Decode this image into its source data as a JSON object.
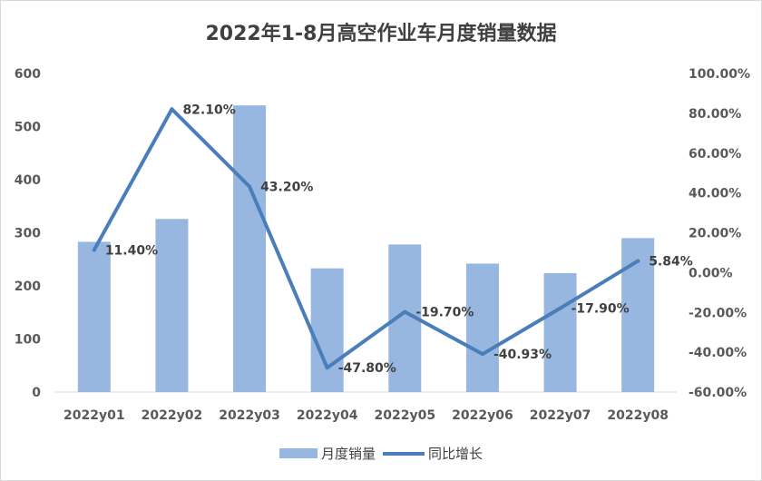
{
  "chart_data": {
    "type": "bar",
    "title": "2022年1-8月高空作业车月度销量数据",
    "categories": [
      "2022y01",
      "2022y02",
      "2022y03",
      "2022y04",
      "2022y05",
      "2022y06",
      "2022y07",
      "2022y08"
    ],
    "series": [
      {
        "name": "月度销量",
        "type": "bar",
        "axis": "left",
        "color": "#97b6e0",
        "values": [
          283,
          326,
          540,
          233,
          278,
          242,
          224,
          290
        ]
      },
      {
        "name": "同比增长",
        "type": "line",
        "axis": "right",
        "color": "#4a7ebb",
        "values": [
          11.4,
          82.1,
          43.2,
          -47.8,
          -19.7,
          -40.93,
          -17.9,
          5.84
        ],
        "labels": [
          "11.40%",
          "82.10%",
          "43.20%",
          "-47.80%",
          "-19.70%",
          "-40.93%",
          "-17.90%",
          "5.84%"
        ]
      }
    ],
    "y_left": {
      "ylim": [
        0,
        600
      ],
      "ticks": [
        "0",
        "100",
        "200",
        "300",
        "400",
        "500",
        "600"
      ]
    },
    "y_right": {
      "ylim": [
        -60,
        100
      ],
      "ticks": [
        "-60.00%",
        "-40.00%",
        "-20.00%",
        "0.00%",
        "20.00%",
        "40.00%",
        "60.00%",
        "80.00%",
        "100.00%"
      ]
    },
    "grid": false,
    "legend_position": "bottom"
  }
}
